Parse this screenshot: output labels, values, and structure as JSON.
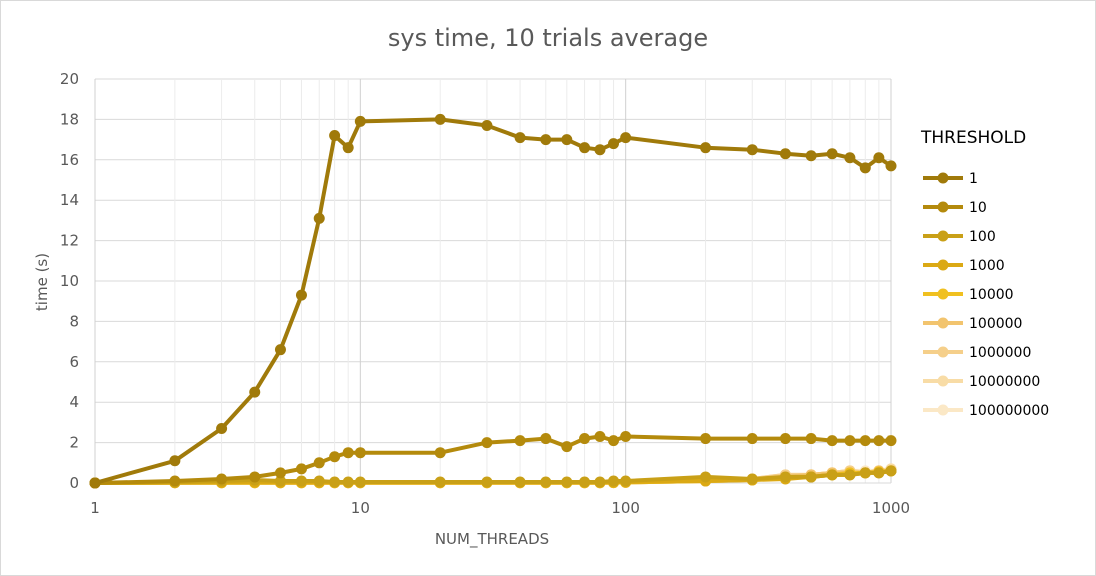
{
  "chart_data": {
    "type": "line",
    "title": "sys time, 10 trials average",
    "xlabel": "NUM_THREADS",
    "ylabel": "time (s)",
    "xscale": "log",
    "xlim": [
      1,
      1000
    ],
    "ylim": [
      0,
      20
    ],
    "x_ticks": [
      "1",
      "10",
      "100",
      "1000"
    ],
    "y_ticks": [
      "0",
      "2",
      "4",
      "6",
      "8",
      "10",
      "12",
      "14",
      "16",
      "18",
      "20"
    ],
    "grid": true,
    "legend": {
      "title": "THRESHOLD",
      "position": "right"
    },
    "x": [
      1,
      2,
      3,
      4,
      5,
      6,
      7,
      8,
      9,
      10,
      20,
      30,
      40,
      50,
      60,
      70,
      80,
      90,
      100,
      200,
      300,
      400,
      500,
      600,
      700,
      800,
      900,
      1000
    ],
    "series": [
      {
        "name": "1",
        "color": "#a07a0a",
        "values": [
          0,
          1.1,
          2.7,
          4.5,
          6.6,
          9.3,
          13.1,
          17.2,
          16.6,
          17.9,
          18.0,
          17.7,
          17.1,
          17.0,
          17.0,
          16.6,
          16.5,
          16.8,
          17.1,
          16.6,
          16.5,
          16.3,
          16.2,
          16.3,
          16.1,
          15.6,
          16.1,
          15.7
        ]
      },
      {
        "name": "10",
        "color": "#b48a0c",
        "values": [
          0,
          0.1,
          0.2,
          0.3,
          0.5,
          0.7,
          1.0,
          1.3,
          1.5,
          1.5,
          1.5,
          2.0,
          2.1,
          2.2,
          1.8,
          2.2,
          2.3,
          2.1,
          2.3,
          2.2,
          2.2,
          2.2,
          2.2,
          2.1,
          2.1,
          2.1,
          2.1,
          2.1
        ]
      },
      {
        "name": "100",
        "color": "#c9a017",
        "values": [
          0,
          0.05,
          0.1,
          0.15,
          0.1,
          0.1,
          0.1,
          0.05,
          0.05,
          0.05,
          0.05,
          0.05,
          0.05,
          0.05,
          0.05,
          0.05,
          0.05,
          0.1,
          0.1,
          0.3,
          0.2,
          0.3,
          0.3,
          0.4,
          0.4,
          0.5,
          0.5,
          0.6
        ]
      },
      {
        "name": "1000",
        "color": "#dba914",
        "values": [
          0,
          0.02,
          0.03,
          0.04,
          0.03,
          0.03,
          0.03,
          0.03,
          0.03,
          0.03,
          0.03,
          0.03,
          0.03,
          0.03,
          0.03,
          0.03,
          0.03,
          0.04,
          0.05,
          0.1,
          0.15,
          0.2,
          0.3,
          0.4,
          0.4,
          0.5,
          0.5,
          0.6
        ]
      },
      {
        "name": "10000",
        "color": "#f0c020",
        "values": [
          0,
          0.01,
          0.01,
          0.01,
          0.01,
          0.01,
          0.01,
          0.01,
          0.01,
          0.01,
          0.01,
          0.01,
          0.01,
          0.01,
          0.01,
          0.01,
          0.01,
          0.02,
          0.03,
          0.1,
          0.15,
          0.25,
          0.3,
          0.4,
          0.5,
          0.5,
          0.55,
          0.6
        ]
      },
      {
        "name": "100000",
        "color": "#f2c46e",
        "values": [
          0,
          0.01,
          0.01,
          0.01,
          0.01,
          0.01,
          0.01,
          0.01,
          0.01,
          0.01,
          0.01,
          0.01,
          0.01,
          0.01,
          0.01,
          0.01,
          0.01,
          0.02,
          0.03,
          0.1,
          0.15,
          0.3,
          0.4,
          0.5,
          0.5,
          0.5,
          0.6,
          0.6
        ]
      },
      {
        "name": "1000000",
        "color": "#f5cf8a",
        "values": [
          0,
          0.01,
          0.01,
          0.01,
          0.01,
          0.01,
          0.01,
          0.01,
          0.01,
          0.01,
          0.01,
          0.01,
          0.01,
          0.01,
          0.01,
          0.01,
          0.01,
          0.02,
          0.03,
          0.1,
          0.2,
          0.4,
          0.4,
          0.5,
          0.6,
          0.5,
          0.6,
          0.6
        ]
      },
      {
        "name": "10000000",
        "color": "#f8dca6",
        "values": [
          0,
          0.01,
          0.01,
          0.01,
          0.01,
          0.01,
          0.01,
          0.01,
          0.01,
          0.01,
          0.01,
          0.01,
          0.01,
          0.01,
          0.01,
          0.01,
          0.01,
          0.02,
          0.03,
          0.1,
          0.2,
          0.4,
          0.4,
          0.5,
          0.6,
          0.5,
          0.6,
          0.7
        ]
      },
      {
        "name": "100000000",
        "color": "#fbe8c6",
        "values": [
          0,
          0.01,
          0.01,
          0.01,
          0.01,
          0.01,
          0.01,
          0.01,
          0.01,
          0.01,
          0.01,
          0.01,
          0.01,
          0.01,
          0.01,
          0.01,
          0.01,
          0.02,
          0.03,
          0.1,
          0.2,
          0.3,
          0.4,
          0.5,
          0.6,
          0.6,
          0.6,
          0.7
        ]
      }
    ]
  }
}
